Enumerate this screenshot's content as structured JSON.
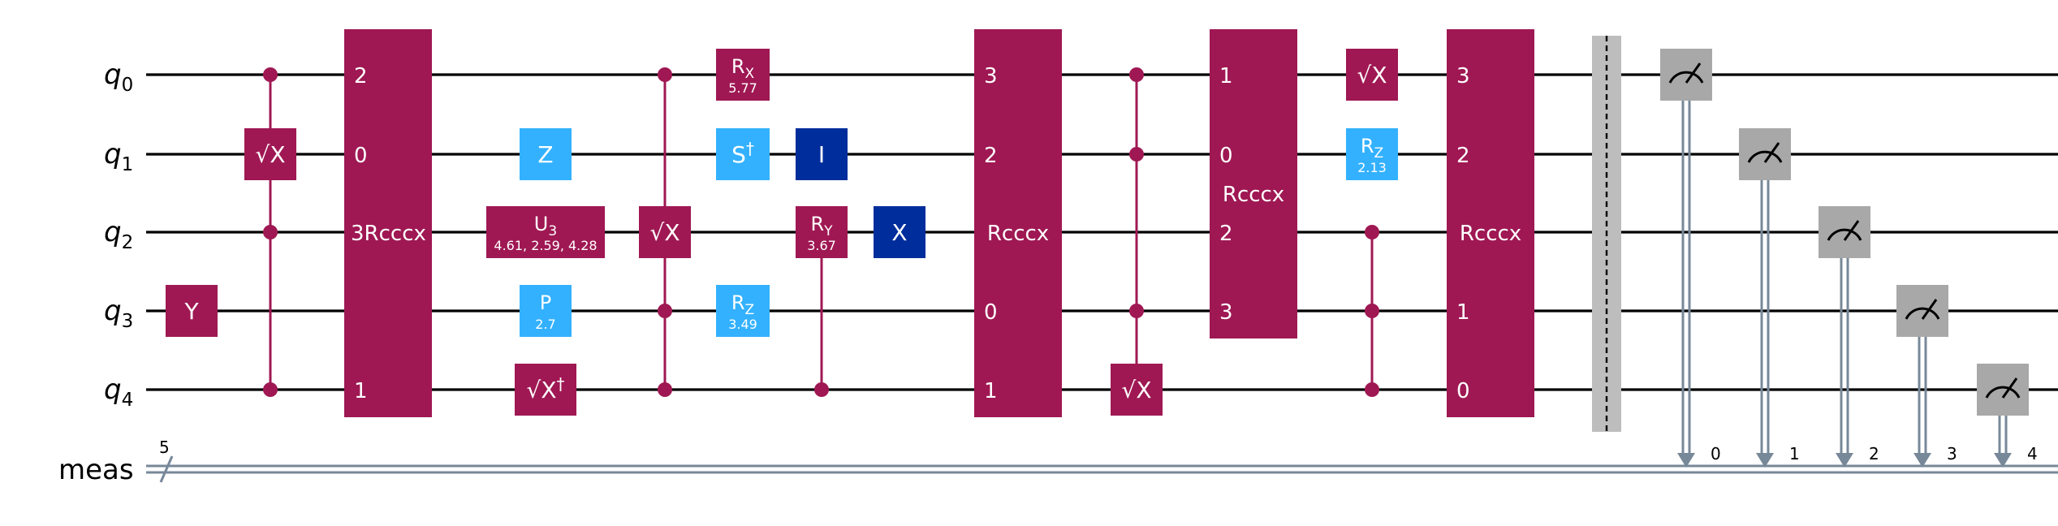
{
  "colors": {
    "magenta": "#9F1853",
    "lightblue": "#33B1FF",
    "darkblue": "#002D9C",
    "measure": "#A8A8A8",
    "barrier": "#BDBDBD",
    "classical": "#778899",
    "wire": "#000000",
    "text_on_gate": "#FFFFFF"
  },
  "qubits": [
    {
      "base": "q",
      "sub": "0"
    },
    {
      "base": "q",
      "sub": "1"
    },
    {
      "base": "q",
      "sub": "2"
    },
    {
      "base": "q",
      "sub": "3"
    },
    {
      "base": "q",
      "sub": "4"
    }
  ],
  "creg": {
    "label": "meas",
    "size": "5"
  },
  "gates": [
    {
      "id": "y",
      "label": "Y",
      "qubit": 3,
      "color": "magenta"
    },
    {
      "id": "csx1",
      "label": "√X",
      "qubit": 1,
      "controls": [
        0,
        2,
        4
      ],
      "color": "magenta"
    },
    {
      "id": "rcccx-a",
      "label": "Rcccx",
      "prefix": "3",
      "span": [
        0,
        4
      ],
      "ports": {
        "0": "2",
        "1": "0",
        "4": "1"
      },
      "color": "magenta"
    },
    {
      "id": "z",
      "label": "Z",
      "qubit": 1,
      "color": "lightblue"
    },
    {
      "id": "u3",
      "label": "U",
      "sub": "3",
      "param": "4.61, 2.59, 4.28",
      "qubit": 2,
      "color": "magenta"
    },
    {
      "id": "p",
      "label": "P",
      "param": "2.7",
      "qubit": 3,
      "color": "lightblue"
    },
    {
      "id": "sxdg",
      "label": "√X",
      "sup": "†",
      "qubit": 4,
      "color": "magenta"
    },
    {
      "id": "csx2",
      "label": "√X",
      "qubit": 2,
      "controls": [
        0,
        3,
        4
      ],
      "color": "magenta"
    },
    {
      "id": "rx",
      "label": "R",
      "sub": "X",
      "param": "5.77",
      "qubit": 0,
      "color": "magenta"
    },
    {
      "id": "sdg",
      "label": "S",
      "sup": "†",
      "qubit": 1,
      "color": "lightblue"
    },
    {
      "id": "rz1",
      "label": "R",
      "sub": "Z",
      "param": "3.49",
      "qubit": 3,
      "color": "lightblue"
    },
    {
      "id": "id",
      "label": "I",
      "qubit": 1,
      "color": "darkblue"
    },
    {
      "id": "ry",
      "label": "R",
      "sub": "Y",
      "param": "3.67",
      "qubit": 2,
      "controls": [
        4
      ],
      "color": "magenta"
    },
    {
      "id": "x",
      "label": "X",
      "qubit": 2,
      "color": "darkblue"
    },
    {
      "id": "rcccx-b",
      "label": "Rcccx",
      "span": [
        0,
        4
      ],
      "ports": {
        "0": "3",
        "1": "2",
        "3": "0",
        "4": "1"
      },
      "color": "magenta"
    },
    {
      "id": "csx3",
      "label": "√X",
      "qubit": 4,
      "controls": [
        0,
        1,
        3
      ],
      "color": "magenta"
    },
    {
      "id": "rcccx-c",
      "label": "Rcccx",
      "span": [
        0,
        3
      ],
      "ports": {
        "0": "1",
        "1": "0",
        "2": "2",
        "3": "3"
      },
      "color": "magenta"
    },
    {
      "id": "sx",
      "label": "√X",
      "qubit": 0,
      "color": "magenta"
    },
    {
      "id": "rz2",
      "label": "R",
      "sub": "Z",
      "param": "2.13",
      "qubit": 1,
      "color": "lightblue"
    },
    {
      "id": "ccz",
      "label": "",
      "dots": [
        2,
        3,
        4
      ],
      "color": "magenta"
    },
    {
      "id": "rcccx-d",
      "label": "Rcccx",
      "span": [
        0,
        4
      ],
      "ports": {
        "0": "3",
        "1": "2",
        "3": "1",
        "4": "0"
      },
      "color": "magenta"
    }
  ],
  "measurements": [
    {
      "qubit": 0,
      "clbit": "0"
    },
    {
      "qubit": 1,
      "clbit": "1"
    },
    {
      "qubit": 2,
      "clbit": "2"
    },
    {
      "qubit": 3,
      "clbit": "3"
    },
    {
      "qubit": 4,
      "clbit": "4"
    }
  ]
}
